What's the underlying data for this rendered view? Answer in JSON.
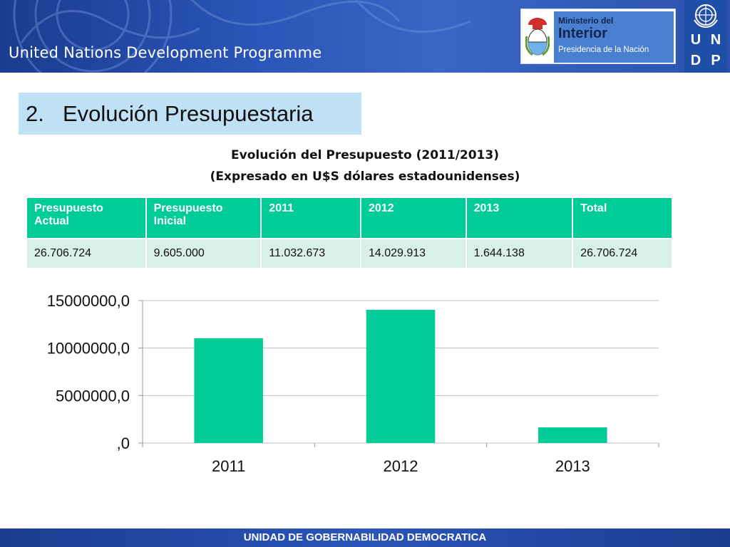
{
  "header": {
    "banner_title": "United Nations Development Programme",
    "ministry": {
      "line1": "Ministerio del",
      "line2": "Interior",
      "line3": "Presidencia de la Nación"
    },
    "undp_letters": [
      "U",
      "N",
      "D",
      "P"
    ]
  },
  "section": {
    "number": "2.",
    "title": "Evolución Presupuestaria"
  },
  "subtitle": {
    "line1": "Evolución del  Presupuesto  (2011/2013)",
    "line2": "(Expresado en U$S dólares estadounidenses)"
  },
  "table": {
    "headers": [
      "Presupuesto Actual",
      "Presupuesto Inicial",
      "2011",
      "2012",
      "2013",
      "Total"
    ],
    "row": [
      "26.706.724",
      "9.605.000",
      "11.032.673",
      "14.029.913",
      "1.644.138",
      "26.706.724"
    ]
  },
  "chart_data": {
    "type": "bar",
    "categories": [
      "2011",
      "2012",
      "2013"
    ],
    "values": [
      11032673,
      14029913,
      1644138
    ],
    "ylim": [
      0,
      15000000
    ],
    "yticks": [
      0,
      5000000,
      10000000,
      15000000
    ],
    "ytick_labels": [
      ",0",
      "5000000,0",
      "10000000,0",
      "15000000,0"
    ],
    "grid": true,
    "bar_color": "#00cc99",
    "title": "",
    "xlabel": "",
    "ylabel": ""
  },
  "footer": {
    "text": "UNIDAD DE GOBERNABILIDAD DEMOCRATICA"
  },
  "colors": {
    "banner": "#2b55b8",
    "accent": "#00cc99",
    "table_cell": "#d9f0e6",
    "section_bg": "#bfe0f5"
  }
}
